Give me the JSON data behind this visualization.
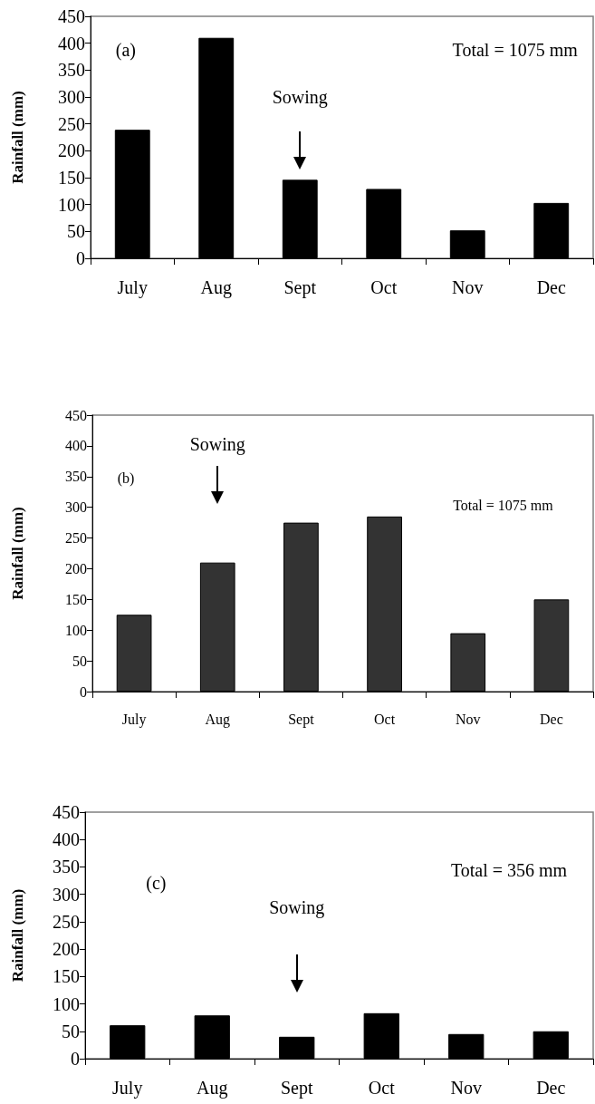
{
  "chart_data": [
    {
      "type": "bar",
      "categories": [
        "July",
        "Aug",
        "Sept",
        "Oct",
        "Nov",
        "Dec"
      ],
      "values": [
        239,
        410,
        146,
        129,
        52,
        103
      ],
      "color": "#000000",
      "ylabel": "Rainfall (mm)",
      "ylim": [
        0,
        450
      ],
      "yticks": [
        0,
        50,
        100,
        150,
        200,
        250,
        300,
        350,
        400,
        450
      ],
      "grid": false,
      "annotations": [
        "(a)",
        "Sowing",
        "Total = 1075 mm"
      ]
    },
    {
      "type": "bar",
      "categories": [
        "July",
        "Aug",
        "Sept",
        "Oct",
        "Nov",
        "Dec"
      ],
      "values": [
        125,
        210,
        275,
        285,
        95,
        150
      ],
      "color": "#333333",
      "ylabel": "Rainfall (mm)",
      "ylim": [
        0,
        450
      ],
      "yticks": [
        0,
        50,
        100,
        150,
        200,
        250,
        300,
        350,
        400,
        450
      ],
      "grid": false,
      "annotations": [
        "(b)",
        "Sowing",
        "Total = 1075 mm"
      ]
    },
    {
      "type": "bar",
      "categories": [
        "July",
        "Aug",
        "Sept",
        "Oct",
        "Nov",
        "Dec"
      ],
      "values": [
        61,
        79,
        40,
        83,
        45,
        50
      ],
      "color": "#000000",
      "ylabel": "Rainfall (mm)",
      "ylim": [
        0,
        450
      ],
      "yticks": [
        0,
        50,
        100,
        150,
        200,
        250,
        300,
        350,
        400,
        450
      ],
      "grid": false,
      "annotations": [
        "(c)",
        "Sowing",
        "Total = 356 mm"
      ]
    }
  ]
}
